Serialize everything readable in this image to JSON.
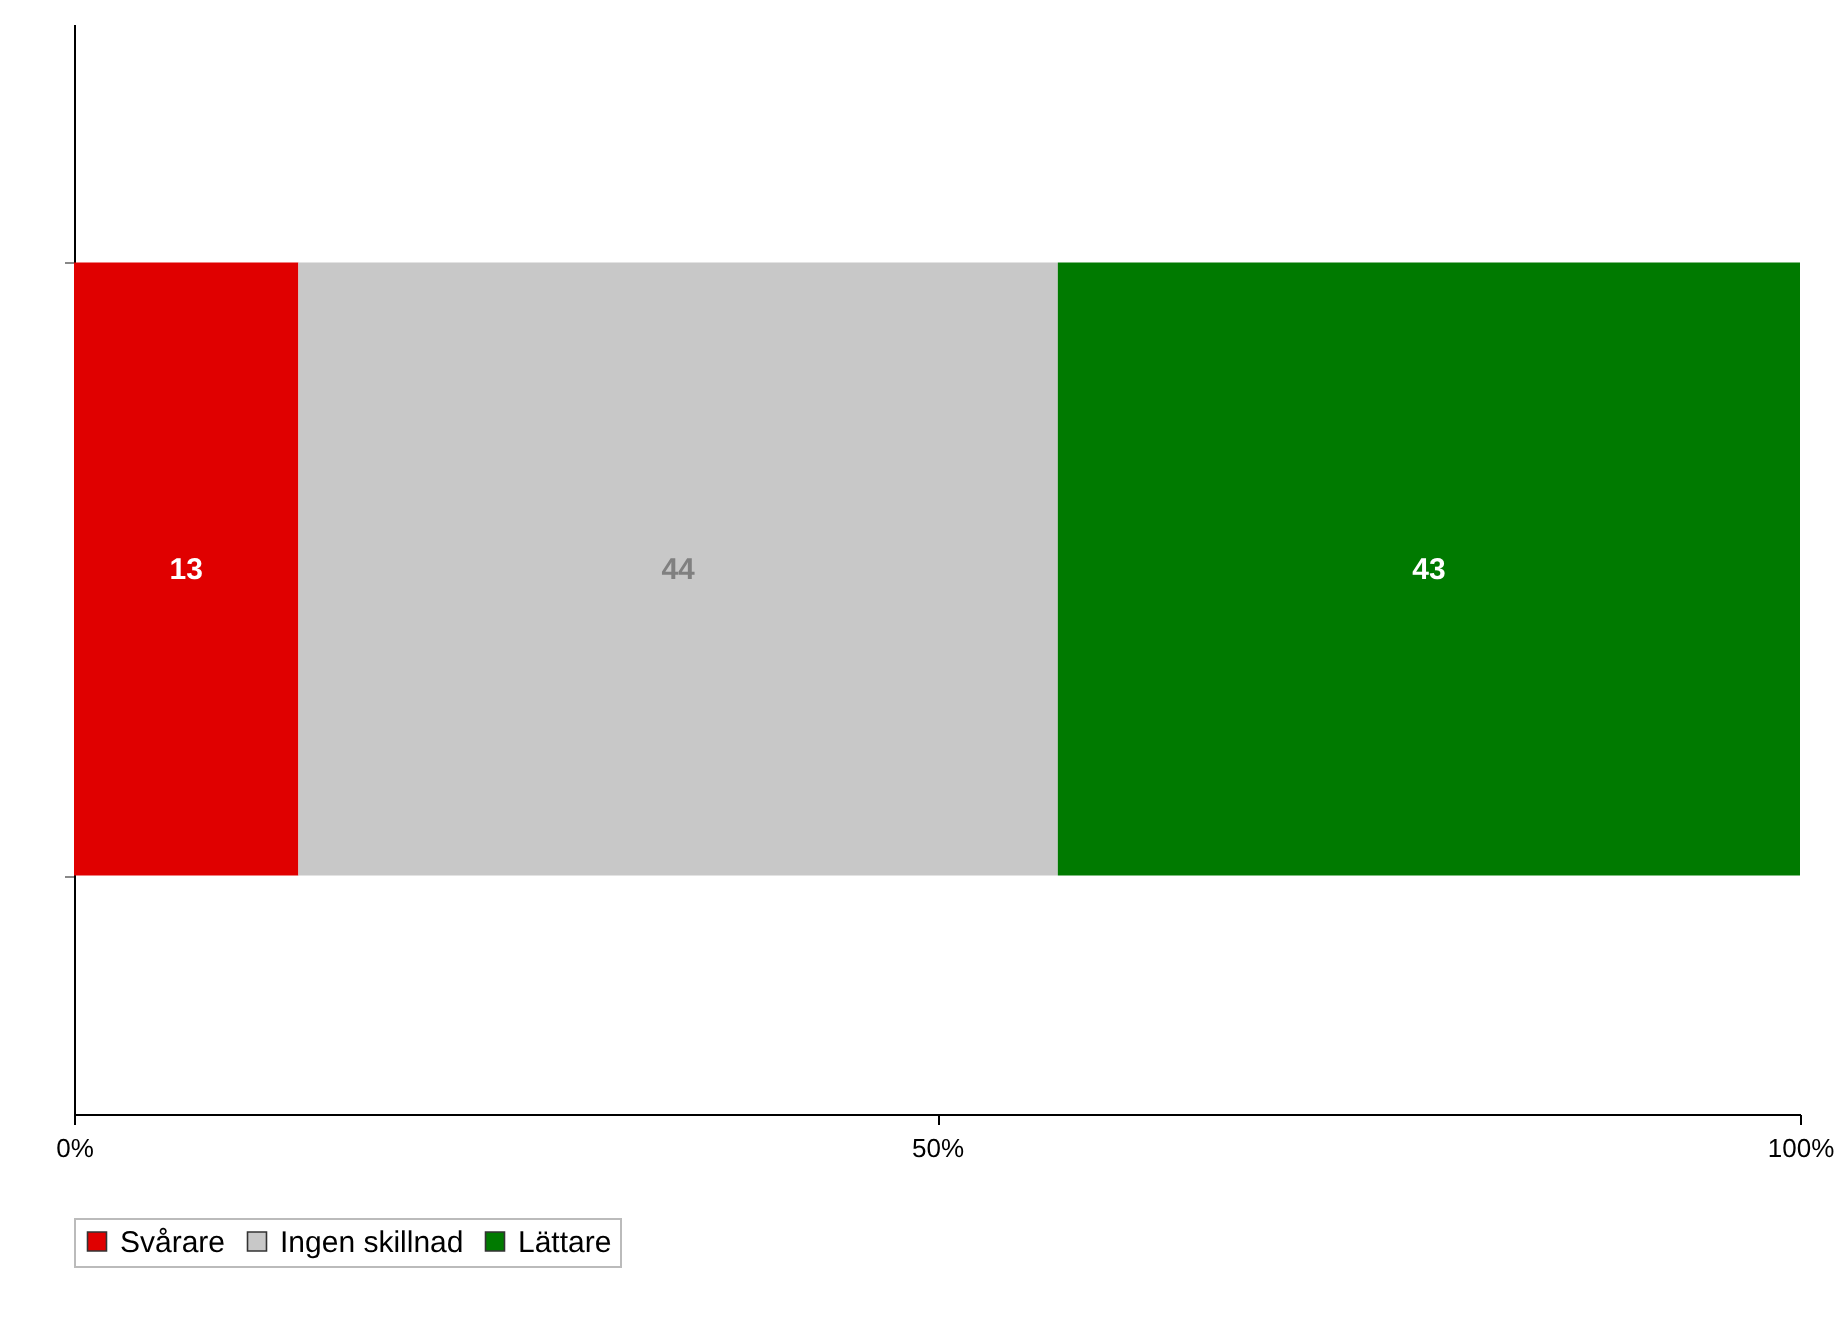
{
  "chart_data": {
    "type": "bar",
    "orientation": "horizontal",
    "stacked": true,
    "categories": [
      null
    ],
    "series": [
      {
        "name": "Svårare",
        "color": "#e00000",
        "values": [
          13
        ]
      },
      {
        "name": "Ingen skillnad",
        "color": "#c8c8c8",
        "values": [
          44
        ]
      },
      {
        "name": "Lättare",
        "color": "#007a00",
        "values": [
          43
        ]
      }
    ],
    "xlim": [
      0,
      100
    ],
    "xticks": [
      {
        "value": 0,
        "label": "0%"
      },
      {
        "value": 50,
        "label": "50%"
      },
      {
        "value": 100,
        "label": "100%"
      }
    ],
    "data_labels": true,
    "legend": "bottom",
    "grid": false
  }
}
